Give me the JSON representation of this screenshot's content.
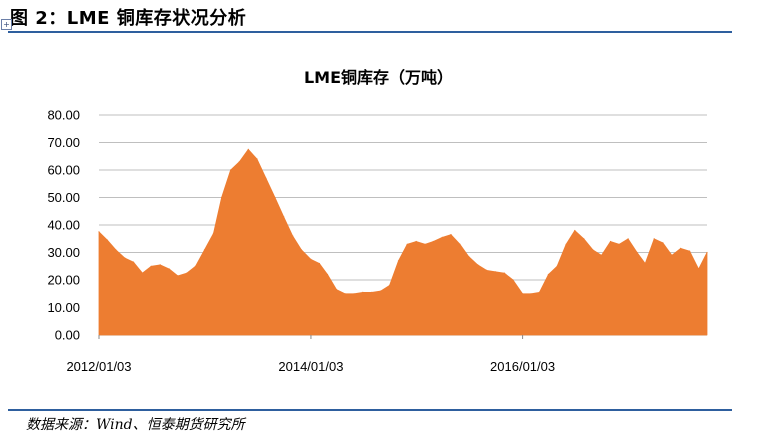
{
  "figure": {
    "title": "图 2：LME 铜库存状况分析",
    "move_handle_icon": "move-cross-icon",
    "source": "数据来源：Wind、恒泰期货研究所",
    "rule_color": "#2e5f9e"
  },
  "chart_data": {
    "type": "area",
    "title": "LME铜库存（万吨）",
    "xlabel": "",
    "ylabel": "",
    "ylim": [
      0,
      80
    ],
    "yticks": [
      "0.00",
      "10.00",
      "20.00",
      "30.00",
      "40.00",
      "50.00",
      "60.00",
      "70.00",
      "80.00"
    ],
    "xticks": [
      "2012/01/03",
      "2014/01/03",
      "2016/01/03"
    ],
    "xlim": [
      "2012/01/03",
      "2017/09/30"
    ],
    "grid": true,
    "legend": "none",
    "fill_color": "#ed7d31",
    "series": [
      {
        "x": [
          "2012/01/03",
          "2012/02/01",
          "2012/03/01",
          "2012/04/01",
          "2012/05/01",
          "2012/06/01",
          "2012/07/01",
          "2012/08/01",
          "2012/09/01",
          "2012/10/01",
          "2012/11/01",
          "2012/12/01",
          "2013/01/01",
          "2013/02/01",
          "2013/03/01",
          "2013/04/01",
          "2013/05/01",
          "2013/06/01",
          "2013/07/01",
          "2013/08/01",
          "2013/09/01",
          "2013/10/01",
          "2013/11/01",
          "2013/12/01",
          "2014/01/03",
          "2014/02/01",
          "2014/03/01",
          "2014/04/01",
          "2014/05/01",
          "2014/06/01",
          "2014/07/01",
          "2014/08/01",
          "2014/09/01",
          "2014/10/01",
          "2014/11/01",
          "2014/12/01",
          "2015/01/01",
          "2015/02/01",
          "2015/03/01",
          "2015/04/01",
          "2015/05/01",
          "2015/06/01",
          "2015/07/01",
          "2015/08/01",
          "2015/09/01",
          "2015/10/01",
          "2015/11/01",
          "2015/12/01",
          "2016/01/03",
          "2016/02/01",
          "2016/03/01",
          "2016/04/01",
          "2016/05/01",
          "2016/06/01",
          "2016/07/01",
          "2016/08/01",
          "2016/09/01",
          "2016/10/01",
          "2016/11/01",
          "2016/12/01",
          "2017/01/01",
          "2017/02/01",
          "2017/03/01",
          "2017/04/01",
          "2017/05/01",
          "2017/06/01",
          "2017/07/01",
          "2017/08/01",
          "2017/09/01",
          "2017/09/30"
        ],
        "values": [
          37.5,
          34.5,
          31.0,
          28.0,
          26.5,
          22.5,
          25.0,
          25.5,
          24.0,
          21.5,
          22.5,
          25.0,
          31.0,
          37.0,
          50.0,
          60.0,
          63.0,
          67.5,
          64.0,
          57.0,
          50.0,
          43.0,
          36.0,
          31.0,
          27.5,
          26.0,
          22.0,
          16.5,
          15.0,
          15.0,
          15.5,
          15.5,
          16.0,
          18.0,
          27.0,
          33.0,
          34.0,
          33.0,
          34.0,
          35.5,
          36.5,
          33.0,
          28.5,
          25.5,
          23.5,
          23.0,
          22.5,
          20.0,
          15.0,
          15.0,
          15.5,
          22.0,
          25.0,
          33.0,
          38.0,
          35.0,
          31.0,
          29.0,
          34.0,
          33.0,
          35.0,
          30.0,
          26.0,
          35.0,
          33.5,
          29.0,
          31.5,
          30.5,
          24.0,
          30.0
        ]
      }
    ]
  }
}
